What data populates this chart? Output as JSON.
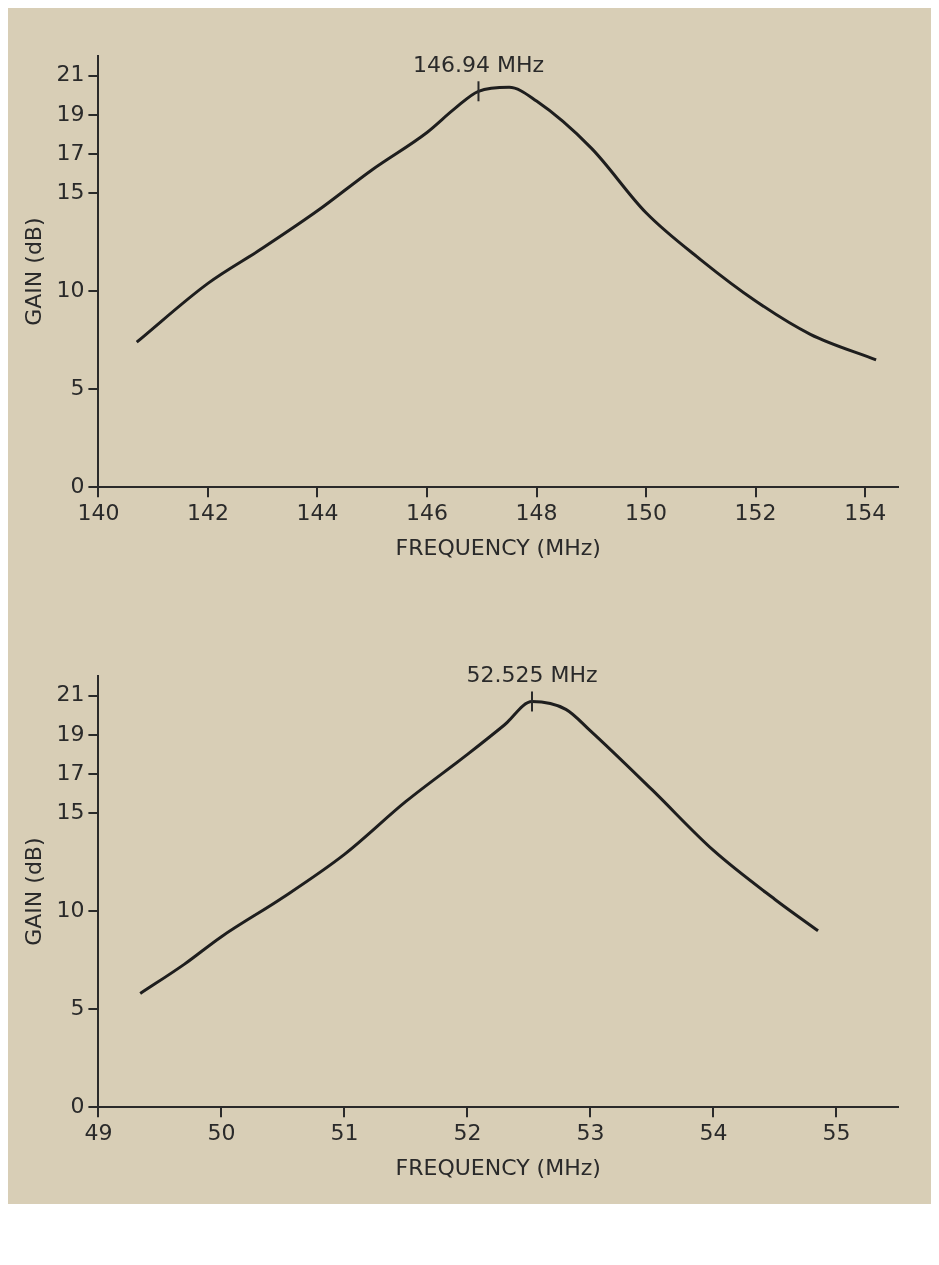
{
  "chart_data": [
    {
      "type": "line",
      "xlabel": "FREQUENCY (MHz)",
      "ylabel": "GAIN (dB)",
      "marker": "none",
      "color": "#1e1e1e",
      "x": [
        140.7,
        142,
        143,
        144,
        145,
        146,
        146.5,
        146.94,
        147.5,
        148,
        149,
        150,
        151,
        152,
        153,
        154.2
      ],
      "values": [
        7.4,
        10.4,
        12.2,
        14.1,
        16.2,
        18.1,
        19.3,
        20.2,
        20.4,
        19.7,
        17.3,
        14,
        11.6,
        9.5,
        7.8,
        6.5
      ],
      "xlim": [
        140,
        154.6
      ],
      "xticks": [
        140,
        142,
        144,
        146,
        148,
        150,
        152,
        154
      ],
      "ylim": [
        0,
        22
      ],
      "yticks": [
        0,
        5,
        10,
        15,
        17,
        19,
        21
      ],
      "annotations": [
        {
          "text": "146.94 MHz",
          "x": 146.94,
          "y": 20.2
        }
      ]
    },
    {
      "type": "line",
      "xlabel": "FREQUENCY (MHz)",
      "ylabel": "GAIN (dB)",
      "marker": "none",
      "color": "#1e1e1e",
      "x": [
        49.34,
        49.7,
        50,
        50.5,
        51,
        51.5,
        52,
        52.3,
        52.525,
        52.8,
        53,
        53.5,
        54,
        54.5,
        54.85
      ],
      "values": [
        5.8,
        7.3,
        8.7,
        10.7,
        12.9,
        15.6,
        18,
        19.5,
        20.7,
        20.3,
        19.2,
        16.2,
        13.1,
        10.6,
        9
      ],
      "xlim": [
        49,
        55.5
      ],
      "xticks": [
        49,
        50,
        51,
        52,
        53,
        54,
        55
      ],
      "ylim": [
        0,
        22
      ],
      "yticks": [
        0,
        5,
        10,
        15,
        17,
        19,
        21
      ],
      "annotations": [
        {
          "text": "52.525 MHz",
          "x": 52.525,
          "y": 20.7
        }
      ]
    }
  ]
}
